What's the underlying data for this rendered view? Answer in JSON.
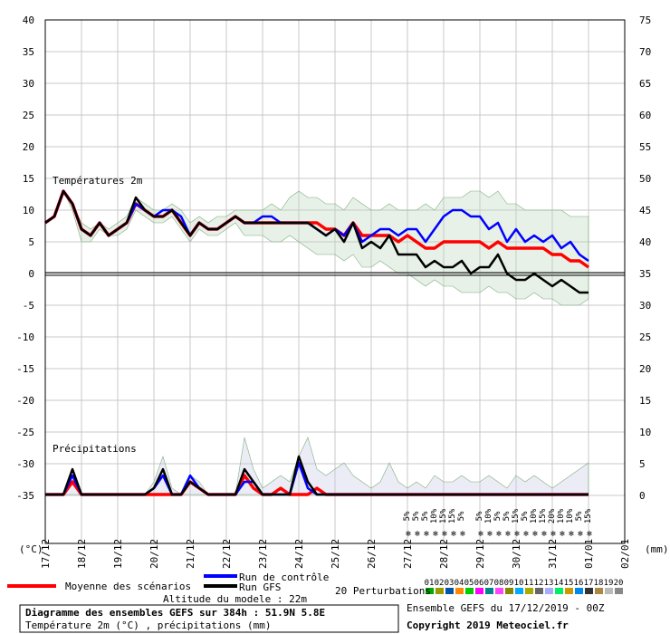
{
  "chart_data": {
    "type": "line",
    "title": "Diagramme des ensembles GEFS sur 384h : 51.9N 5.8E",
    "subtitle": "Température 2m (°C) , précipitations (mm)",
    "panel_labels": {
      "temperature": "Températures 2m",
      "precipitation": "Précipitations"
    },
    "y_left_unit": "(°C)",
    "y_right_unit": "(mm)",
    "y_left_ticks": [
      40,
      35,
      30,
      25,
      20,
      15,
      10,
      5,
      0,
      -5,
      -10,
      -15,
      -20,
      -25,
      -30,
      -35
    ],
    "y_right_ticks": [
      75,
      70,
      65,
      60,
      55,
      50,
      45,
      40,
      35,
      30,
      25,
      20,
      15,
      10,
      5,
      0
    ],
    "x_dates": [
      "17/12",
      "18/12",
      "19/12",
      "20/12",
      "21/12",
      "22/12",
      "23/12",
      "24/12",
      "25/12",
      "26/12",
      "27/12",
      "28/12",
      "29/12",
      "30/12",
      "31/12",
      "01/01",
      "02/01"
    ],
    "x_step_hours": 6,
    "snow_risk_labels": [
      "5%",
      "5%",
      "5%",
      "10%",
      "15%",
      "15%",
      "5%",
      "5%",
      "10%",
      "5%",
      "5%",
      "15%",
      "5%",
      "10%",
      "15%",
      "20%",
      "10%",
      "10%",
      "5%",
      "15%"
    ],
    "series": [
      {
        "name": "Moyenne des scénarios",
        "color": "#ff0000",
        "temperature": [
          8,
          9,
          13,
          11,
          7,
          6,
          8,
          6,
          7,
          8,
          11,
          10,
          9,
          9,
          10,
          8,
          6,
          8,
          7,
          7,
          8,
          9,
          8,
          8,
          8,
          8,
          8,
          8,
          8,
          8,
          8,
          7,
          7,
          6,
          8,
          6,
          6,
          6,
          6,
          5,
          6,
          5,
          4,
          4,
          5,
          5,
          5,
          5,
          5,
          4,
          5,
          4,
          4,
          4,
          4,
          4,
          3,
          3,
          2,
          2,
          1
        ],
        "precipitation": [
          0,
          0,
          0,
          2,
          0,
          0,
          0,
          0,
          0,
          0,
          0,
          0,
          0,
          0,
          0,
          0,
          2,
          1,
          0,
          0,
          0,
          0,
          3,
          1,
          0,
          0,
          1,
          0,
          0,
          0,
          1,
          0,
          0,
          0,
          0,
          0,
          0,
          0,
          0,
          0,
          0,
          0,
          0,
          0,
          0,
          0,
          0,
          0,
          0,
          0,
          0,
          0,
          0,
          0,
          0,
          0,
          0,
          0,
          0,
          0,
          0
        ]
      },
      {
        "name": "Run de contrôle",
        "color": "#0000ff",
        "temperature": [
          8,
          9,
          13,
          11,
          7,
          6,
          8,
          6,
          7,
          8,
          11,
          10,
          9,
          10,
          10,
          9,
          6,
          8,
          7,
          7,
          8,
          9,
          8,
          8,
          9,
          9,
          8,
          8,
          8,
          8,
          7,
          6,
          7,
          6,
          8,
          5,
          6,
          7,
          7,
          6,
          7,
          7,
          5,
          7,
          9,
          10,
          10,
          9,
          9,
          7,
          8,
          5,
          7,
          5,
          6,
          5,
          6,
          4,
          5,
          3,
          2
        ],
        "precipitation": [
          0,
          0,
          0,
          3,
          0,
          0,
          0,
          0,
          0,
          0,
          0,
          0,
          1,
          3,
          0,
          0,
          3,
          1,
          0,
          0,
          0,
          0,
          2,
          2,
          0,
          0,
          0,
          0,
          5,
          1,
          0,
          0,
          0,
          0,
          0,
          0,
          0,
          0,
          0,
          0,
          0,
          0,
          0,
          0,
          0,
          0,
          0,
          0,
          0,
          0,
          0,
          0,
          0,
          0,
          0,
          0,
          0,
          0,
          0,
          0,
          0
        ]
      },
      {
        "name": "Run GFS",
        "color": "#000000",
        "temperature": [
          8,
          9,
          13,
          11,
          7,
          6,
          8,
          6,
          7,
          8,
          12,
          10,
          9,
          9,
          10,
          8,
          6,
          8,
          7,
          7,
          8,
          9,
          8,
          8,
          8,
          8,
          8,
          8,
          8,
          8,
          7,
          6,
          7,
          5,
          8,
          4,
          5,
          4,
          6,
          3,
          3,
          3,
          1,
          2,
          1,
          1,
          2,
          0,
          1,
          1,
          3,
          0,
          -1,
          -1,
          0,
          -1,
          -2,
          -1,
          -2,
          -3,
          -3
        ],
        "precipitation": [
          0,
          0,
          0,
          4,
          0,
          0,
          0,
          0,
          0,
          0,
          0,
          0,
          1,
          4,
          0,
          0,
          2,
          1,
          0,
          0,
          0,
          0,
          4,
          2,
          0,
          0,
          0,
          0,
          6,
          2,
          0,
          0,
          0,
          0,
          0,
          0,
          0,
          0,
          0,
          0,
          0,
          0,
          0,
          0,
          0,
          0,
          0,
          0,
          0,
          0,
          0,
          0,
          0,
          0,
          0,
          0,
          0,
          0,
          0,
          0,
          0
        ]
      }
    ],
    "perturbations_label": "20 Perturbations",
    "perturbation_ids": [
      "01",
      "02",
      "03",
      "04",
      "05",
      "06",
      "07",
      "08",
      "09",
      "10",
      "11",
      "12",
      "13",
      "14",
      "15",
      "16",
      "17",
      "18",
      "19",
      "20"
    ],
    "perturbation_colors": [
      "#00aa00",
      "#999900",
      "#0055aa",
      "#ff8800",
      "#00cc00",
      "#ff00ff",
      "#008888",
      "#ff44ff",
      "#888800",
      "#00aaff",
      "#aaaa00",
      "#666666",
      "#aaaaff",
      "#00ee66",
      "#cc9900",
      "#0088ee",
      "#333333",
      "#aa8844",
      "#bbbbbb",
      "#888888"
    ],
    "spread_temperature_low": [
      8,
      9,
      13,
      10,
      5,
      5,
      7,
      6,
      6,
      7,
      10,
      9,
      8,
      8,
      9,
      7,
      5,
      7,
      6,
      6,
      7,
      8,
      6,
      6,
      6,
      5,
      5,
      6,
      5,
      4,
      3,
      3,
      3,
      2,
      3,
      1,
      1,
      2,
      1,
      0,
      0,
      -1,
      -2,
      -1,
      -2,
      -2,
      -3,
      -3,
      -3,
      -2,
      -3,
      -3,
      -4,
      -4,
      -3,
      -4,
      -4,
      -5,
      -5,
      -5,
      -4
    ],
    "spread_temperature_high": [
      8,
      9,
      13,
      11,
      8,
      7,
      8,
      7,
      8,
      9,
      12,
      11,
      10,
      10,
      11,
      10,
      8,
      9,
      8,
      9,
      9,
      10,
      10,
      10,
      10,
      11,
      10,
      12,
      13,
      12,
      12,
      11,
      11,
      10,
      12,
      11,
      10,
      10,
      11,
      10,
      10,
      10,
      11,
      10,
      12,
      12,
      12,
      13,
      13,
      12,
      13,
      11,
      11,
      10,
      10,
      10,
      10,
      10,
      9,
      9,
      9
    ],
    "spread_precipitation_high": [
      0,
      0,
      0,
      4,
      0,
      0,
      0,
      0,
      0,
      0,
      0,
      0,
      2,
      6,
      1,
      0,
      3,
      2,
      0,
      0,
      0,
      0,
      9,
      4,
      1,
      2,
      3,
      2,
      6,
      9,
      4,
      3,
      4,
      5,
      3,
      2,
      1,
      2,
      5,
      2,
      1,
      2,
      1,
      3,
      2,
      2,
      3,
      2,
      2,
      3,
      2,
      1,
      3,
      2,
      3,
      2,
      1,
      2,
      3,
      4,
      5
    ],
    "legend": {
      "mean": "Moyenne des scénarios",
      "control": "Run de contrôle",
      "gfs": "Run GFS",
      "model_altitude": "Altitude du modele : 22m"
    },
    "footer": {
      "ensemble": "Ensemble GEFS du 17/12/2019 - 00Z",
      "copyright": "Copyright 2019 Meteociel.fr"
    }
  }
}
